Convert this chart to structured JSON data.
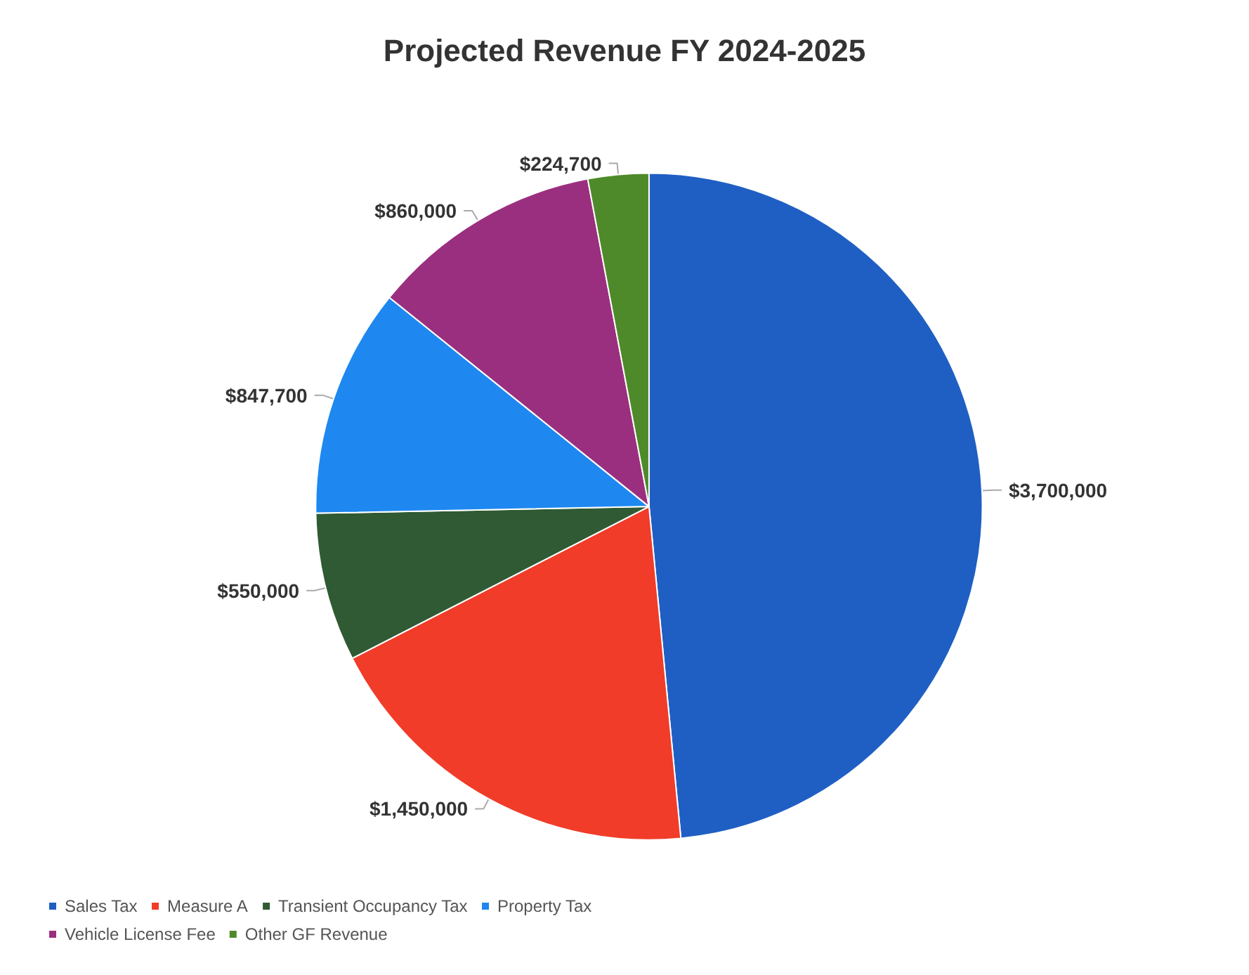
{
  "chart_data": {
    "type": "pie",
    "title": "Projected Revenue FY 2024-2025",
    "categories": [
      "Sales Tax",
      "Measure A",
      "Transient Occupancy Tax",
      "Property Tax",
      "Vehicle License Fee",
      "Other GF Revenue"
    ],
    "values": [
      3700000,
      1450000,
      550000,
      847700,
      860000,
      224700
    ],
    "colors": [
      "#1f5fc4",
      "#f03c28",
      "#2f5a34",
      "#1e88f0",
      "#9b2f7f",
      "#4f8a2a"
    ],
    "value_labels": [
      "$3,700,000",
      "$1,450,000",
      "$550,000",
      "$847,700",
      "$860,000",
      "$224,700"
    ],
    "legend": "bottom left"
  }
}
